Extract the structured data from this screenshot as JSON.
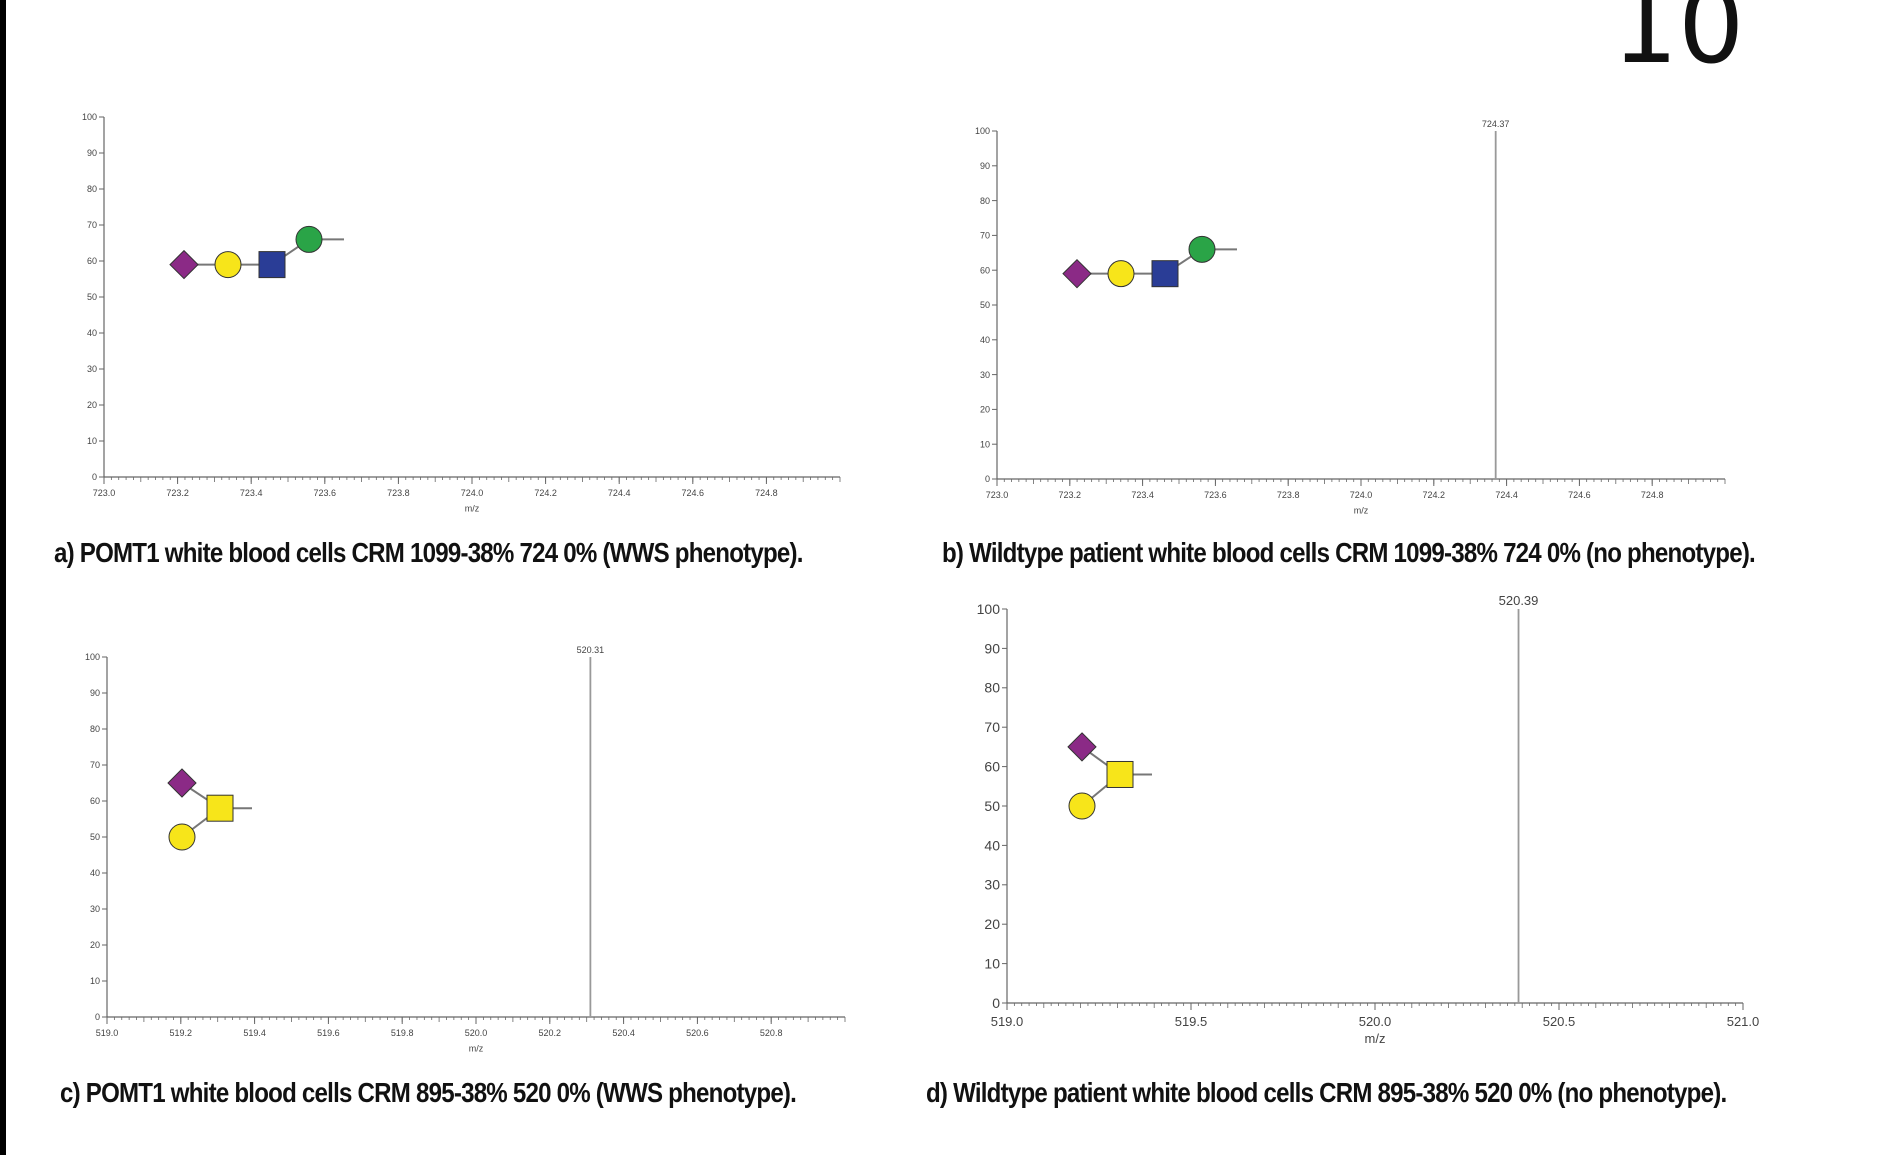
{
  "page_number": "10",
  "panels": [
    {
      "id": "a",
      "caption": "a) POMT1 white blood cells CRM 1099-38% 724 0% (WWS phenotype).",
      "glycan": "diamond-circle-square-circle",
      "chart_data": {
        "type": "bar",
        "xlabel": "m/z",
        "ylabel": "",
        "xlim": [
          723.0,
          725.0
        ],
        "ylim": [
          0,
          100
        ],
        "x_ticks": [
          "723.0",
          "723.2",
          "723.4",
          "723.6",
          "723.8",
          "724.0",
          "724.2",
          "724.4",
          "724.6",
          "724.8"
        ],
        "y_ticks": [
          "0",
          "10",
          "20",
          "30",
          "40",
          "50",
          "60",
          "70",
          "80",
          "90",
          "100"
        ],
        "peaks": []
      }
    },
    {
      "id": "b",
      "caption": "b)  Wildtype patient white blood cells CRM 1099-38% 724 0% (no phenotype).",
      "glycan": "diamond-circle-square-circle",
      "chart_data": {
        "type": "bar",
        "xlabel": "m/z",
        "ylabel": "",
        "xlim": [
          723.0,
          725.0
        ],
        "ylim": [
          0,
          100
        ],
        "x_ticks": [
          "723.0",
          "723.2",
          "723.4",
          "723.6",
          "723.8",
          "724.0",
          "724.2",
          "724.4",
          "724.6",
          "724.8"
        ],
        "y_ticks": [
          "0",
          "10",
          "20",
          "30",
          "40",
          "50",
          "60",
          "70",
          "80",
          "90",
          "100"
        ],
        "peaks": [
          {
            "x": 724.37,
            "y": 100,
            "label": "724.37"
          }
        ]
      }
    },
    {
      "id": "c",
      "caption": "c) POMT1 white blood cells CRM 895-38% 520 0% (WWS phenotype).",
      "glycan": "diamond-circle-branch-square",
      "chart_data": {
        "type": "bar",
        "xlabel": "m/z",
        "ylabel": "",
        "xlim": [
          519.0,
          521.0
        ],
        "ylim": [
          0,
          100
        ],
        "x_ticks": [
          "519.0",
          "519.2",
          "519.4",
          "519.6",
          "519.8",
          "520.0",
          "520.2",
          "520.4",
          "520.6",
          "520.8"
        ],
        "y_ticks": [
          "0",
          "10",
          "20",
          "30",
          "40",
          "50",
          "60",
          "70",
          "80",
          "90",
          "100"
        ],
        "peaks": [
          {
            "x": 520.31,
            "y": 100,
            "label": "520.31"
          }
        ]
      }
    },
    {
      "id": "d",
      "caption": "d) Wildtype patient white blood cells CRM 895-38% 520 0%  (no phenotype).",
      "glycan": "diamond-circle-branch-square",
      "chart_data": {
        "type": "bar",
        "xlabel": "m/z",
        "ylabel": "",
        "xlim": [
          519.0,
          521.0
        ],
        "ylim": [
          0,
          100
        ],
        "x_ticks": [
          "519.0",
          "519.5",
          "520.0",
          "520.5",
          "521.0"
        ],
        "y_ticks": [
          "0",
          "10",
          "20",
          "30",
          "40",
          "50",
          "60",
          "70",
          "80",
          "90",
          "100"
        ],
        "peaks": [
          {
            "x": 520.39,
            "y": 100,
            "label": "520.39"
          }
        ]
      }
    }
  ],
  "colors": {
    "sialic_acid": "#8b2a86",
    "galactose": "#f7e51a",
    "galnac": "#f7e51a",
    "glcnac": "#2a3d96",
    "mannose": "#2aa447",
    "axis": "#666666",
    "peak": "#999999"
  }
}
